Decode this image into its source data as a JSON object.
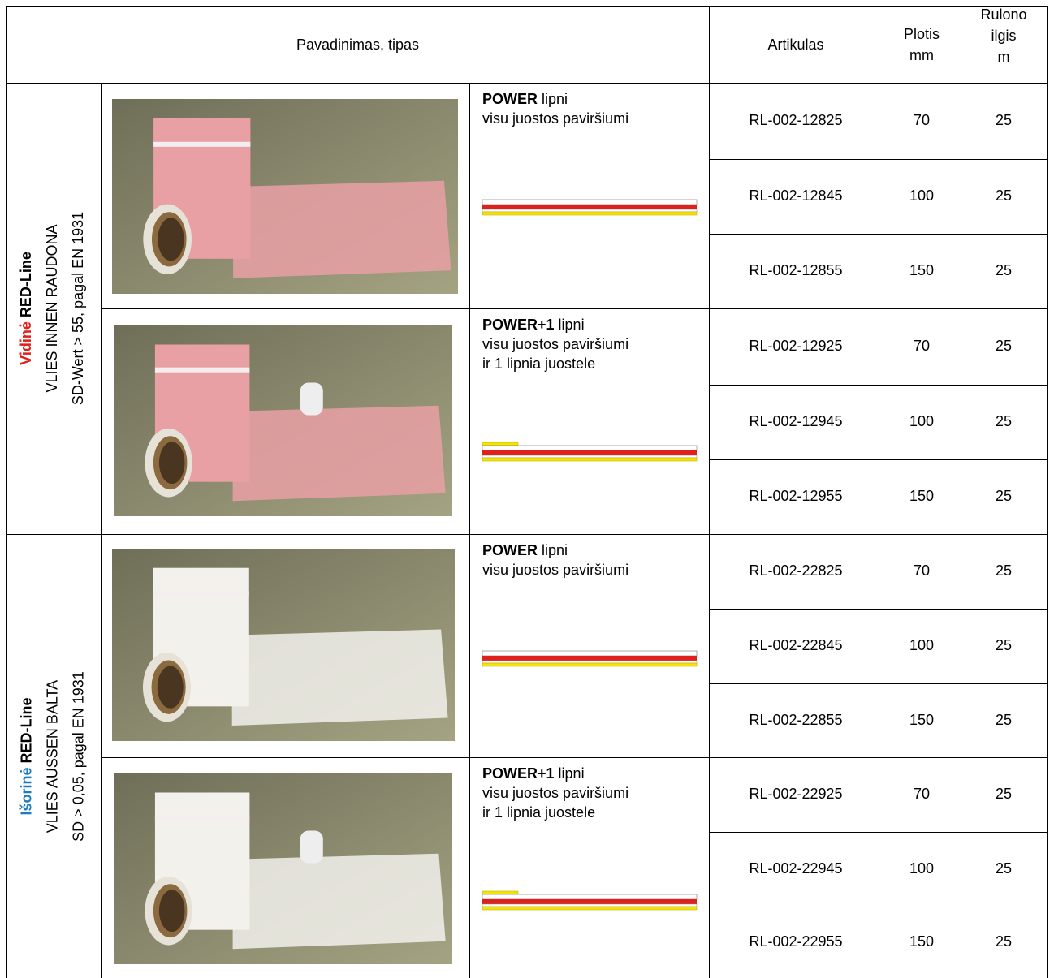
{
  "header": {
    "name": "Pavadinimas, tipas",
    "article": "Artikulas",
    "width": [
      "Plotis",
      "mm"
    ],
    "length": [
      "Rulono",
      "ilgis",
      "m"
    ]
  },
  "groups": [
    {
      "kind": "Vidinė",
      "brand": "RED-Line",
      "line2": "VLIES INNEN RAUDONA",
      "line3": "SD-Wert > 55, pagal EN 1931",
      "products": [
        {
          "name": "POWER",
          "desc": [
            "lipni",
            "visu juostos paviršiumi"
          ],
          "rows": [
            [
              "RL-002-12825",
              70,
              25
            ],
            [
              "RL-002-12845",
              100,
              25
            ],
            [
              "RL-002-12855",
              150,
              25
            ]
          ]
        },
        {
          "name": "POWER+1",
          "desc": [
            "lipni",
            "visu juostos paviršiumi",
            "ir 1 lipnia juostele"
          ],
          "rows": [
            [
              "RL-002-12925",
              70,
              25
            ],
            [
              "RL-002-12945",
              100,
              25
            ],
            [
              "RL-002-12955",
              150,
              25
            ]
          ]
        }
      ]
    },
    {
      "kind": "Išorinė",
      "brand": "RED-Line",
      "line2": "VLIES AUSSEN BALTA",
      "line3": "SD > 0,05, pagal EN 1931",
      "products": [
        {
          "name": "POWER",
          "desc": [
            "lipni",
            "visu juostos paviršiumi"
          ],
          "rows": [
            [
              "RL-002-22825",
              70,
              25
            ],
            [
              "RL-002-22845",
              100,
              25
            ],
            [
              "RL-002-22855",
              150,
              25
            ]
          ]
        },
        {
          "name": "POWER+1",
          "desc": [
            "lipni",
            "visu juostos paviršiumi",
            "ir 1 lipnia juostele"
          ],
          "rows": [
            [
              "RL-002-22925",
              70,
              25
            ],
            [
              "RL-002-22945",
              100,
              25
            ],
            [
              "RL-002-22955",
              150,
              25
            ]
          ]
        }
      ]
    }
  ]
}
